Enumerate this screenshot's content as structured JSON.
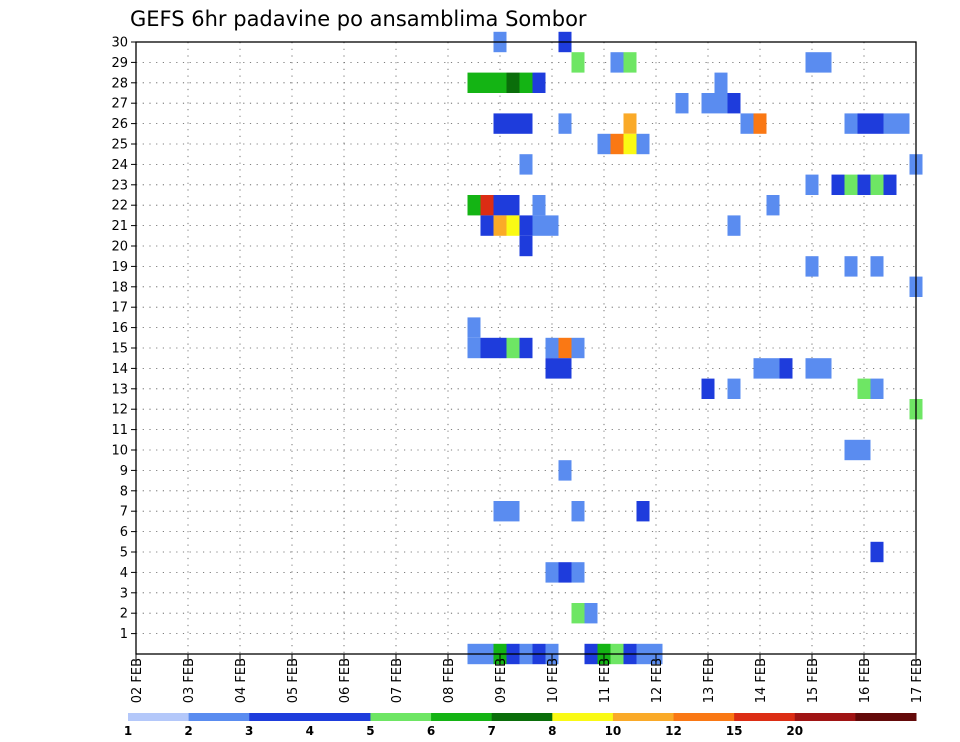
{
  "chart_data": {
    "type": "heatmap",
    "title": "GEFS 6hr padavine po ansamblima Sombor",
    "xlabel": "",
    "ylabel": "",
    "x_ticks": [
      "02 FEB",
      "03 FEB",
      "04 FEB",
      "05 FEB",
      "06 FEB",
      "07 FEB",
      "08 FEB",
      "09 FEB",
      "10 FEB",
      "11 FEB",
      "12 FEB",
      "13 FEB",
      "14 FEB",
      "15 FEB",
      "16 FEB",
      "17 FEB"
    ],
    "xlim_days": [
      2,
      17
    ],
    "y_ticks": [
      1,
      2,
      3,
      4,
      5,
      6,
      7,
      8,
      9,
      10,
      11,
      12,
      13,
      14,
      15,
      16,
      17,
      18,
      19,
      20,
      21,
      22,
      23,
      24,
      25,
      26,
      27,
      28,
      29,
      30
    ],
    "ylim": [
      0,
      30
    ],
    "grid": true,
    "colorbar": {
      "placement": "bottom",
      "levels": [
        "1",
        "2",
        "3",
        "4",
        "5",
        "6",
        "7",
        "8",
        "10",
        "12",
        "15",
        "20"
      ],
      "colors": [
        "#b4c8fa",
        "#5a8cf0",
        "#1e3cdc",
        "#1e3cdc",
        "#6ee664",
        "#14b414",
        "#0a6e0a",
        "#fafa14",
        "#faaa28",
        "#fa7814",
        "#dc2d14",
        "#a01414",
        "#640a0a"
      ]
    },
    "cells": [
      {
        "x": 9.0,
        "member": 30,
        "precip": 1.5
      },
      {
        "x": 10.25,
        "member": 30,
        "precip": 2.5
      },
      {
        "x": 10.5,
        "member": 29,
        "precip": 4.5
      },
      {
        "x": 11.25,
        "member": 29,
        "precip": 1.5
      },
      {
        "x": 11.5,
        "member": 29,
        "precip": 4.5
      },
      {
        "x": 15.0,
        "member": 29,
        "precip": 1.5
      },
      {
        "x": 15.25,
        "member": 29,
        "precip": 1.5
      },
      {
        "x": 8.5,
        "member": 28,
        "precip": 5.5
      },
      {
        "x": 8.75,
        "member": 28,
        "precip": 5.5
      },
      {
        "x": 9.0,
        "member": 28,
        "precip": 5.5
      },
      {
        "x": 9.25,
        "member": 28,
        "precip": 6.5
      },
      {
        "x": 9.5,
        "member": 28,
        "precip": 5.5
      },
      {
        "x": 9.75,
        "member": 28,
        "precip": 2.5
      },
      {
        "x": 13.25,
        "member": 28,
        "precip": 1.5
      },
      {
        "x": 12.5,
        "member": 27,
        "precip": 1.5
      },
      {
        "x": 13.0,
        "member": 27,
        "precip": 1.5
      },
      {
        "x": 13.25,
        "member": 27,
        "precip": 1.5
      },
      {
        "x": 13.5,
        "member": 27,
        "precip": 2.5
      },
      {
        "x": 9.0,
        "member": 26,
        "precip": 2.5
      },
      {
        "x": 9.25,
        "member": 26,
        "precip": 3.5
      },
      {
        "x": 9.5,
        "member": 26,
        "precip": 3.5
      },
      {
        "x": 10.25,
        "member": 26,
        "precip": 1.5
      },
      {
        "x": 11.5,
        "member": 26,
        "precip": 9.0
      },
      {
        "x": 13.75,
        "member": 26,
        "precip": 1.5
      },
      {
        "x": 14.0,
        "member": 26,
        "precip": 11.0
      },
      {
        "x": 15.75,
        "member": 26,
        "precip": 1.5
      },
      {
        "x": 16.0,
        "member": 26,
        "precip": 2.5
      },
      {
        "x": 16.25,
        "member": 26,
        "precip": 3.5
      },
      {
        "x": 16.5,
        "member": 26,
        "precip": 1.5
      },
      {
        "x": 16.75,
        "member": 26,
        "precip": 1.5
      },
      {
        "x": 11.0,
        "member": 25,
        "precip": 1.5
      },
      {
        "x": 11.25,
        "member": 25,
        "precip": 11.0
      },
      {
        "x": 11.5,
        "member": 25,
        "precip": 7.5
      },
      {
        "x": 11.75,
        "member": 25,
        "precip": 1.5
      },
      {
        "x": 9.5,
        "member": 24,
        "precip": 1.5
      },
      {
        "x": 17.0,
        "member": 24,
        "precip": 1.5
      },
      {
        "x": 15.0,
        "member": 23,
        "precip": 1.5
      },
      {
        "x": 15.5,
        "member": 23,
        "precip": 2.5
      },
      {
        "x": 15.75,
        "member": 23,
        "precip": 4.5
      },
      {
        "x": 16.0,
        "member": 23,
        "precip": 3.5
      },
      {
        "x": 16.25,
        "member": 23,
        "precip": 4.5
      },
      {
        "x": 16.5,
        "member": 23,
        "precip": 2.5
      },
      {
        "x": 8.5,
        "member": 22,
        "precip": 5.5
      },
      {
        "x": 8.75,
        "member": 22,
        "precip": 13.5
      },
      {
        "x": 9.0,
        "member": 22,
        "precip": 2.5
      },
      {
        "x": 9.25,
        "member": 22,
        "precip": 2.5
      },
      {
        "x": 9.75,
        "member": 22,
        "precip": 1.5
      },
      {
        "x": 14.25,
        "member": 22,
        "precip": 1.5
      },
      {
        "x": 8.75,
        "member": 21,
        "precip": 3.5
      },
      {
        "x": 9.0,
        "member": 21,
        "precip": 9.0
      },
      {
        "x": 9.25,
        "member": 21,
        "precip": 7.5
      },
      {
        "x": 9.5,
        "member": 21,
        "precip": 2.5
      },
      {
        "x": 9.75,
        "member": 21,
        "precip": 1.5
      },
      {
        "x": 10.0,
        "member": 21,
        "precip": 1.5
      },
      {
        "x": 13.5,
        "member": 21,
        "precip": 1.5
      },
      {
        "x": 9.5,
        "member": 20,
        "precip": 3.5
      },
      {
        "x": 15.0,
        "member": 19,
        "precip": 1.5
      },
      {
        "x": 15.75,
        "member": 19,
        "precip": 1.5
      },
      {
        "x": 16.25,
        "member": 19,
        "precip": 1.5
      },
      {
        "x": 17.0,
        "member": 18,
        "precip": 1.5
      },
      {
        "x": 8.5,
        "member": 16,
        "precip": 1.5
      },
      {
        "x": 8.5,
        "member": 15,
        "precip": 1.5
      },
      {
        "x": 8.75,
        "member": 15,
        "precip": 2.5
      },
      {
        "x": 9.0,
        "member": 15,
        "precip": 3.5
      },
      {
        "x": 9.25,
        "member": 15,
        "precip": 4.5
      },
      {
        "x": 9.5,
        "member": 15,
        "precip": 2.5
      },
      {
        "x": 10.0,
        "member": 15,
        "precip": 1.5
      },
      {
        "x": 10.25,
        "member": 15,
        "precip": 11.0
      },
      {
        "x": 10.5,
        "member": 15,
        "precip": 1.5
      },
      {
        "x": 10.0,
        "member": 14,
        "precip": 2.5
      },
      {
        "x": 10.25,
        "member": 14,
        "precip": 2.5
      },
      {
        "x": 14.0,
        "member": 14,
        "precip": 1.5
      },
      {
        "x": 14.25,
        "member": 14,
        "precip": 1.5
      },
      {
        "x": 14.5,
        "member": 14,
        "precip": 2.5
      },
      {
        "x": 15.0,
        "member": 14,
        "precip": 1.5
      },
      {
        "x": 15.25,
        "member": 14,
        "precip": 1.5
      },
      {
        "x": 13.0,
        "member": 13,
        "precip": 3.5
      },
      {
        "x": 13.5,
        "member": 13,
        "precip": 1.5
      },
      {
        "x": 16.0,
        "member": 13,
        "precip": 4.5
      },
      {
        "x": 16.25,
        "member": 13,
        "precip": 1.5
      },
      {
        "x": 17.0,
        "member": 12,
        "precip": 4.5
      },
      {
        "x": 15.75,
        "member": 10,
        "precip": 1.5
      },
      {
        "x": 16.0,
        "member": 10,
        "precip": 1.5
      },
      {
        "x": 10.25,
        "member": 9,
        "precip": 1.5
      },
      {
        "x": 9.0,
        "member": 7,
        "precip": 1.5
      },
      {
        "x": 9.25,
        "member": 7,
        "precip": 1.5
      },
      {
        "x": 10.5,
        "member": 7,
        "precip": 1.5
      },
      {
        "x": 11.75,
        "member": 7,
        "precip": 2.5
      },
      {
        "x": 16.25,
        "member": 5,
        "precip": 2.5
      },
      {
        "x": 10.0,
        "member": 4,
        "precip": 1.5
      },
      {
        "x": 10.25,
        "member": 4,
        "precip": 2.5
      },
      {
        "x": 10.5,
        "member": 4,
        "precip": 1.5
      },
      {
        "x": 10.5,
        "member": 2,
        "precip": 4.5
      },
      {
        "x": 10.75,
        "member": 2,
        "precip": 1.5
      },
      {
        "x": 8.5,
        "member": 0,
        "precip": 1.5
      },
      {
        "x": 8.75,
        "member": 0,
        "precip": 1.5
      },
      {
        "x": 9.0,
        "member": 0,
        "precip": 5.5
      },
      {
        "x": 9.25,
        "member": 0,
        "precip": 3.5
      },
      {
        "x": 9.5,
        "member": 0,
        "precip": 1.5
      },
      {
        "x": 9.75,
        "member": 0,
        "precip": 2.5
      },
      {
        "x": 10.0,
        "member": 0,
        "precip": 1.5
      },
      {
        "x": 10.75,
        "member": 0,
        "precip": 2.5
      },
      {
        "x": 11.0,
        "member": 0,
        "precip": 5.5
      },
      {
        "x": 11.25,
        "member": 0,
        "precip": 4.5
      },
      {
        "x": 11.5,
        "member": 0,
        "precip": 2.5
      },
      {
        "x": 11.75,
        "member": 0,
        "precip": 1.5
      },
      {
        "x": 12.0,
        "member": 0,
        "precip": 1.5
      }
    ]
  }
}
